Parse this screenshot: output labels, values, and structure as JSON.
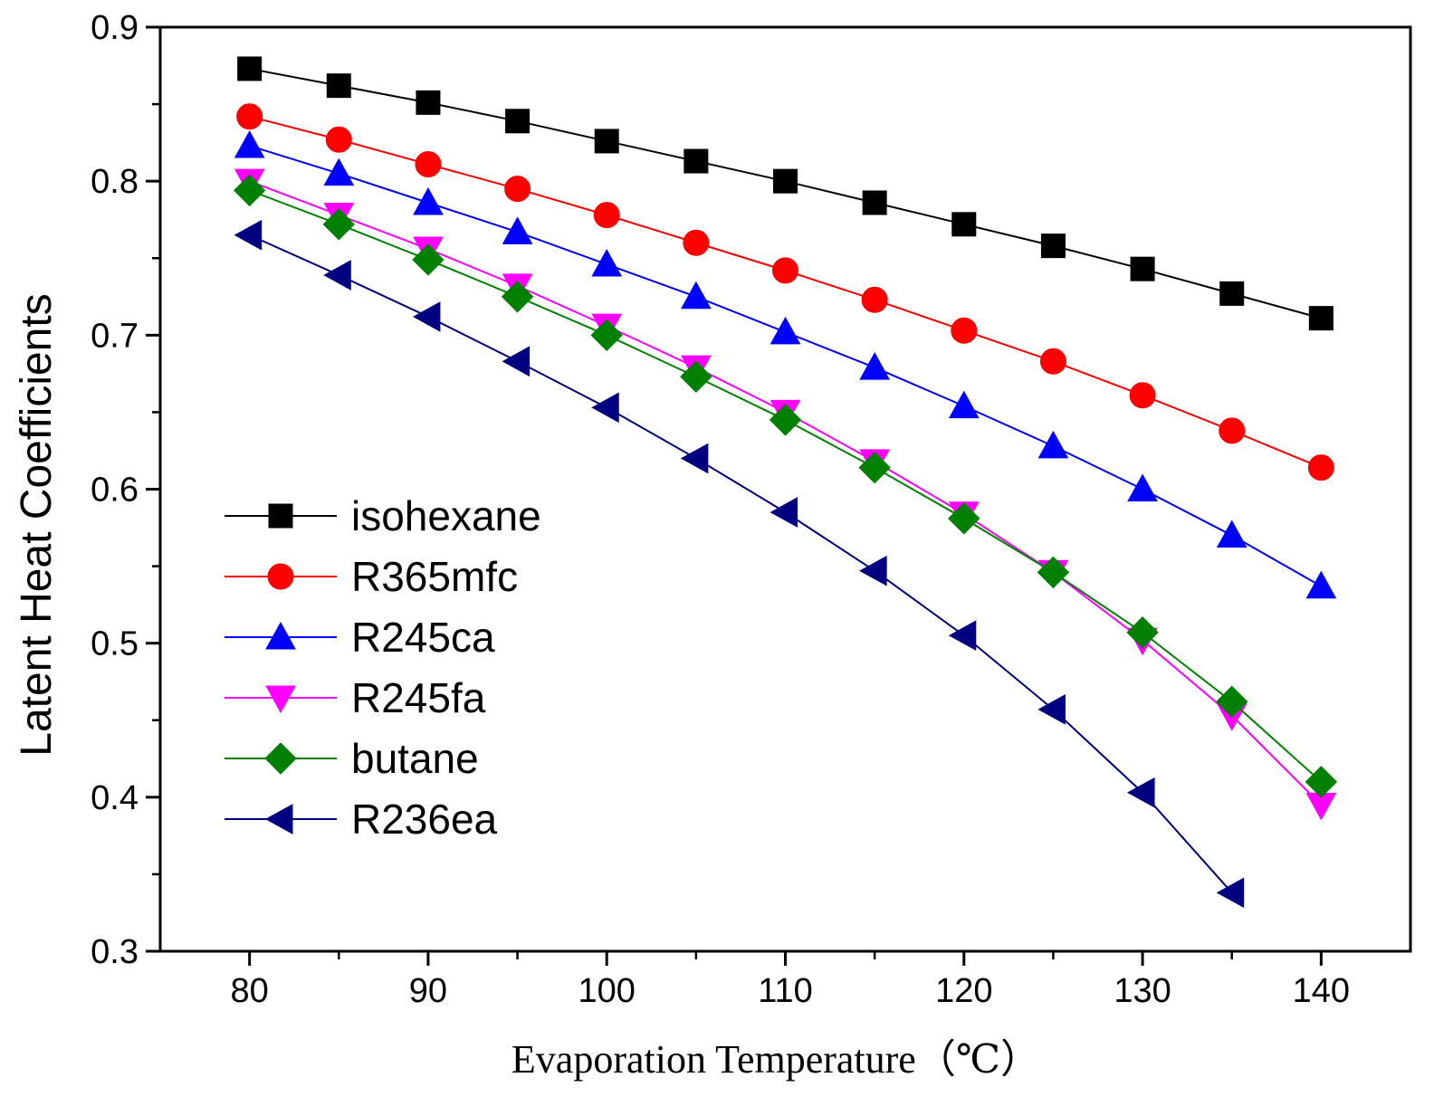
{
  "chart_data": {
    "type": "line",
    "title": "",
    "xlabel": "Evaporation Temperature（℃）",
    "ylabel": "Latent Heat Coefficients",
    "xlim": [
      75,
      145
    ],
    "ylim": [
      0.3,
      0.9
    ],
    "x_ticks": [
      80,
      90,
      100,
      110,
      120,
      130,
      140
    ],
    "x_tick_labels": [
      "80",
      "90",
      "100",
      "110",
      "120",
      "130",
      "140"
    ],
    "y_ticks": [
      0.3,
      0.4,
      0.5,
      0.6,
      0.7,
      0.8,
      0.9
    ],
    "y_tick_labels": [
      "0.3",
      "0.4",
      "0.5",
      "0.6",
      "0.7",
      "0.8",
      "0.9"
    ],
    "grid": false,
    "legend_position": "middle-left",
    "series": [
      {
        "name": "isohexane",
        "color": "#000000",
        "marker": "square",
        "x": [
          80,
          85,
          90,
          95,
          100,
          105,
          110,
          115,
          120,
          125,
          130,
          135,
          140
        ],
        "values": [
          0.873,
          0.862,
          0.851,
          0.839,
          0.826,
          0.813,
          0.8,
          0.786,
          0.772,
          0.758,
          0.743,
          0.727,
          0.711
        ]
      },
      {
        "name": "R365mfc",
        "color": "#ff0000",
        "marker": "circle",
        "x": [
          80,
          85,
          90,
          95,
          100,
          105,
          110,
          115,
          120,
          125,
          130,
          135,
          140
        ],
        "values": [
          0.842,
          0.827,
          0.811,
          0.795,
          0.778,
          0.76,
          0.742,
          0.723,
          0.703,
          0.683,
          0.661,
          0.638,
          0.614
        ]
      },
      {
        "name": "R245ca",
        "color": "#0000ff",
        "marker": "triangle-up",
        "x": [
          80,
          85,
          90,
          95,
          100,
          105,
          110,
          115,
          120,
          125,
          130,
          135,
          140
        ],
        "values": [
          0.823,
          0.805,
          0.786,
          0.767,
          0.746,
          0.725,
          0.702,
          0.679,
          0.654,
          0.628,
          0.6,
          0.57,
          0.537
        ]
      },
      {
        "name": "R245fa",
        "color": "#ff00ff",
        "marker": "triangle-down",
        "x": [
          80,
          85,
          90,
          95,
          100,
          105,
          110,
          115,
          120,
          125,
          130,
          135,
          140
        ],
        "values": [
          0.8,
          0.778,
          0.756,
          0.732,
          0.706,
          0.679,
          0.65,
          0.618,
          0.584,
          0.546,
          0.502,
          0.453,
          0.395
        ]
      },
      {
        "name": "butane",
        "color": "#008000",
        "marker": "diamond",
        "x": [
          80,
          85,
          90,
          95,
          100,
          105,
          110,
          115,
          120,
          125,
          130,
          135,
          140
        ],
        "values": [
          0.794,
          0.772,
          0.749,
          0.725,
          0.7,
          0.673,
          0.645,
          0.614,
          0.581,
          0.546,
          0.507,
          0.462,
          0.41
        ]
      },
      {
        "name": "R236ea",
        "color": "#000080",
        "marker": "triangle-left",
        "x": [
          80,
          85,
          90,
          95,
          100,
          105,
          110,
          115,
          120,
          125,
          130,
          135
        ],
        "values": [
          0.765,
          0.739,
          0.712,
          0.683,
          0.653,
          0.62,
          0.585,
          0.547,
          0.505,
          0.457,
          0.403,
          0.338
        ]
      }
    ]
  }
}
